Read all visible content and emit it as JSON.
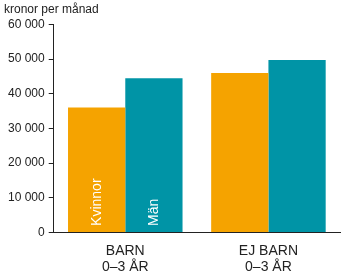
{
  "chart_data": {
    "type": "bar",
    "y_label": "kronor per månad",
    "categories": [
      "BARN\n0–3 ÅR",
      "EJ BARN\n0–3 ÅR"
    ],
    "series": [
      {
        "name": "Kvinnor",
        "color": "#f5a300",
        "values": [
          36000,
          46000
        ]
      },
      {
        "name": "Män",
        "color": "#0094a6",
        "values": [
          44500,
          49700
        ]
      }
    ],
    "ylim": [
      0,
      60000
    ],
    "yticks": [
      0,
      {
        "value": 10000,
        "label": "10 000"
      },
      {
        "value": 20000,
        "label": "20 000"
      },
      {
        "value": 30000,
        "label": "30 000"
      },
      {
        "value": 40000,
        "label": "40 000"
      },
      {
        "value": 50000,
        "label": "50 000"
      },
      {
        "value": 60000,
        "label": "60 000"
      }
    ],
    "grid": false
  }
}
